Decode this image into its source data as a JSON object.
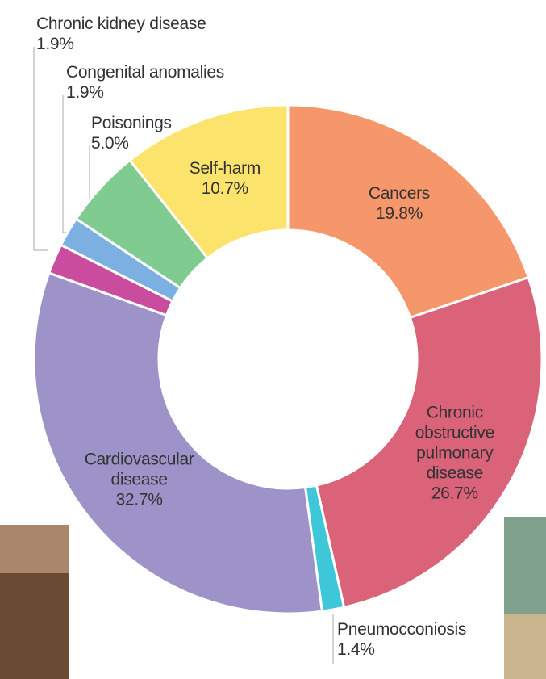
{
  "chart_data": {
    "type": "pie",
    "categories": [
      "Cancers",
      "Chronic obstructive pulmonary disease",
      "Pneumocconiosis",
      "Cardiovascular disease",
      "Chronic kidney disease",
      "Congenital anomalies",
      "Poisonings",
      "Self-harm"
    ],
    "values": [
      19.8,
      26.7,
      1.4,
      32.7,
      1.9,
      1.9,
      5.0,
      10.7
    ],
    "value_labels": [
      "19.8%",
      "26.7%",
      "1.4%",
      "32.7%",
      "1.9%",
      "1.9%",
      "5.0%",
      "10.7%"
    ],
    "colors": [
      "#f5966b",
      "#db6379",
      "#3ec6d9",
      "#9d93c9",
      "#c94c9f",
      "#7cafe2",
      "#80cc90",
      "#fbe36c"
    ]
  }
}
